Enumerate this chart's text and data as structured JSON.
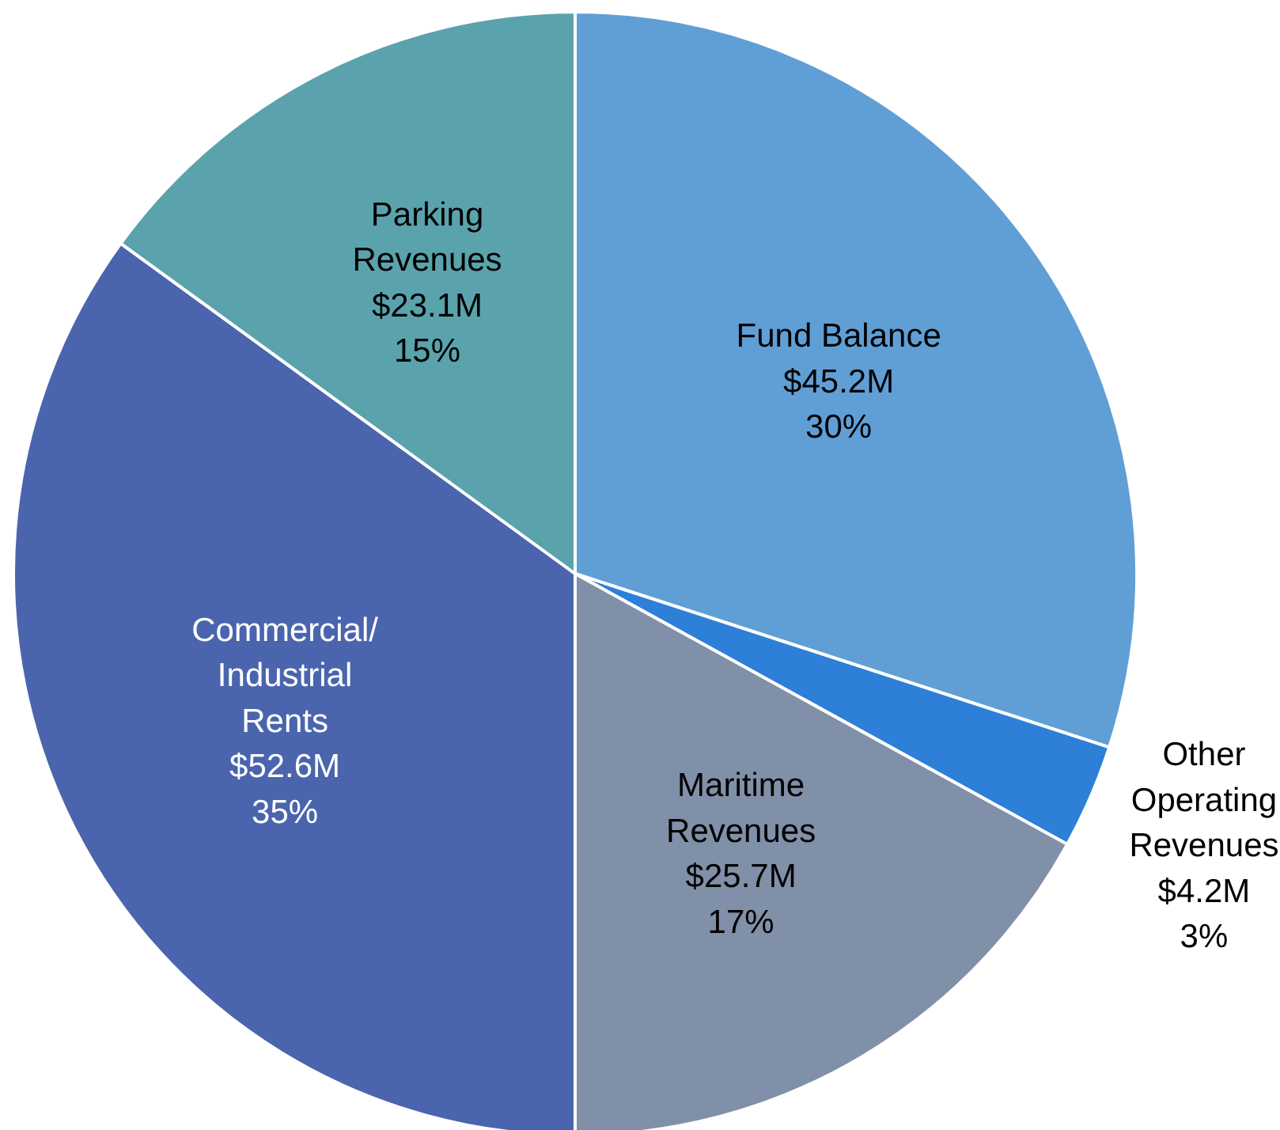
{
  "chart_data": {
    "type": "pie",
    "categories": [
      "Fund Balance",
      "Other\nOperating\nRevenues",
      "Maritime\nRevenues",
      "Commercial/\nIndustrial\nRents",
      "Parking\nRevenues"
    ],
    "values": [
      30,
      3,
      17,
      35,
      15
    ],
    "colors": [
      "#609fd6",
      "#2e7fd8",
      "#8090a8",
      "#4a65ad",
      "#5aa3ad"
    ],
    "value_labels": [
      "$45.2M\n30%",
      "$4.2M\n3%",
      "$25.7M\n17%",
      "$52.6M\n35%",
      "$23.1M\n15%"
    ],
    "legend": false
  }
}
